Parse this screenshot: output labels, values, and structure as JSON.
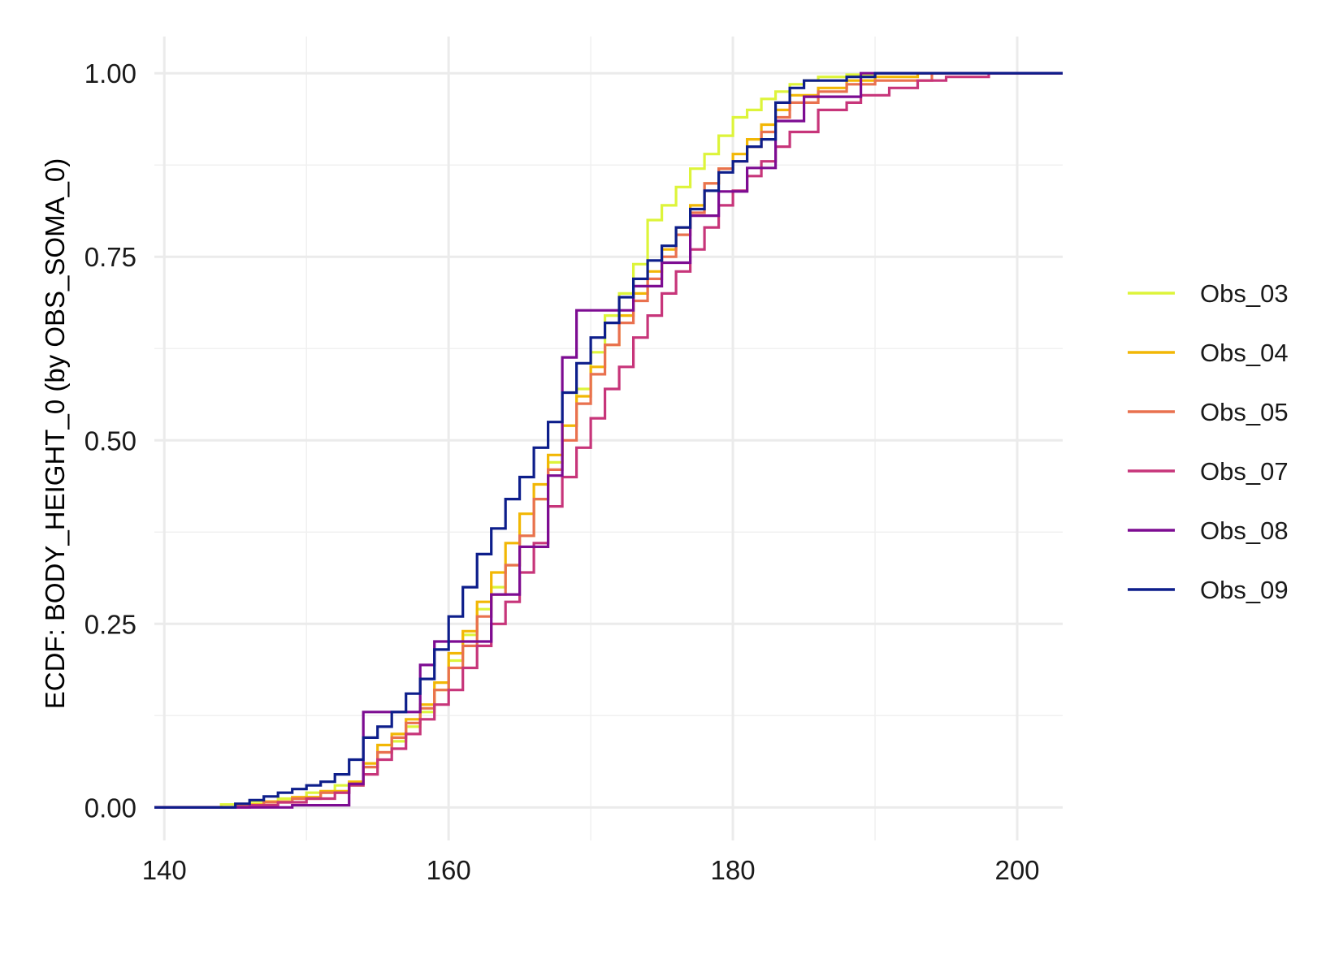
{
  "chart_data": {
    "type": "line",
    "subtype": "ecdf-step",
    "title": "",
    "xlabel": "",
    "ylabel": "ECDF: BODY_HEIGHT_0 (by OBS_SOMA_0)",
    "xlim": [
      139.3,
      203.2
    ],
    "ylim": [
      -0.045,
      1.05
    ],
    "x_ticks": [
      140,
      160,
      180,
      200
    ],
    "x_tick_labels": [
      "140",
      "160",
      "180",
      "200"
    ],
    "y_ticks": [
      0,
      0.25,
      0.5,
      0.75,
      1.0
    ],
    "y_tick_labels": [
      "0.00",
      "0.25",
      "0.50",
      "0.75",
      "1.00"
    ],
    "grid": true,
    "legend_position": "right",
    "series": [
      {
        "name": "Obs_03",
        "color": "#DDF43A",
        "x": [
          144,
          146,
          148,
          150,
          152,
          154,
          155,
          156,
          157,
          158,
          159,
          160,
          161,
          162,
          163,
          164,
          165,
          166,
          167,
          168,
          169,
          170,
          171,
          172,
          173,
          174,
          175,
          176,
          177,
          178,
          179,
          180,
          181,
          182,
          183,
          184,
          185,
          186,
          188,
          190,
          192
        ],
        "y": [
          0.004,
          0.008,
          0.012,
          0.02,
          0.03,
          0.055,
          0.075,
          0.09,
          0.11,
          0.13,
          0.16,
          0.2,
          0.235,
          0.27,
          0.3,
          0.33,
          0.37,
          0.42,
          0.47,
          0.52,
          0.57,
          0.62,
          0.67,
          0.7,
          0.74,
          0.8,
          0.82,
          0.845,
          0.87,
          0.89,
          0.915,
          0.94,
          0.95,
          0.965,
          0.975,
          0.985,
          0.99,
          0.995,
          0.998,
          1.0,
          1.0
        ]
      },
      {
        "name": "Obs_04",
        "color": "#F2B705",
        "x": [
          145,
          147,
          149,
          151,
          153,
          154,
          155,
          156,
          157,
          158,
          159,
          160,
          161,
          162,
          163,
          164,
          165,
          166,
          167,
          168,
          169,
          170,
          171,
          172,
          173,
          174,
          175,
          176,
          177,
          178,
          179,
          180,
          181,
          182,
          183,
          184,
          186,
          188,
          190,
          193
        ],
        "y": [
          0.004,
          0.008,
          0.014,
          0.022,
          0.035,
          0.06,
          0.085,
          0.1,
          0.12,
          0.14,
          0.17,
          0.21,
          0.24,
          0.28,
          0.32,
          0.36,
          0.4,
          0.44,
          0.48,
          0.52,
          0.56,
          0.6,
          0.63,
          0.67,
          0.7,
          0.73,
          0.76,
          0.79,
          0.82,
          0.85,
          0.87,
          0.89,
          0.91,
          0.93,
          0.95,
          0.97,
          0.98,
          0.99,
          0.995,
          1.0
        ]
      },
      {
        "name": "Obs_05",
        "color": "#E9714F",
        "x": [
          145,
          147,
          149,
          151,
          153,
          154,
          155,
          156,
          157,
          158,
          159,
          160,
          161,
          162,
          163,
          164,
          165,
          166,
          167,
          168,
          169,
          170,
          171,
          172,
          173,
          174,
          175,
          176,
          177,
          178,
          179,
          180,
          181,
          182,
          183,
          184,
          186,
          188,
          190,
          194
        ],
        "y": [
          0.003,
          0.007,
          0.012,
          0.02,
          0.032,
          0.055,
          0.075,
          0.095,
          0.115,
          0.135,
          0.16,
          0.19,
          0.22,
          0.26,
          0.29,
          0.33,
          0.37,
          0.42,
          0.46,
          0.5,
          0.55,
          0.59,
          0.63,
          0.66,
          0.69,
          0.72,
          0.75,
          0.78,
          0.81,
          0.85,
          0.87,
          0.88,
          0.9,
          0.92,
          0.94,
          0.96,
          0.975,
          0.985,
          0.99,
          1.0
        ]
      },
      {
        "name": "Obs_07",
        "color": "#C7357A",
        "x": [
          146,
          148,
          150,
          152,
          153,
          154,
          155,
          156,
          157,
          158,
          159,
          160,
          161,
          162,
          163,
          164,
          165,
          166,
          167,
          168,
          169,
          170,
          171,
          172,
          173,
          174,
          175,
          176,
          177,
          178,
          179,
          180,
          181,
          182,
          183,
          184,
          186,
          188,
          189,
          191,
          193,
          195,
          198
        ],
        "y": [
          0.003,
          0.007,
          0.012,
          0.02,
          0.03,
          0.045,
          0.065,
          0.08,
          0.1,
          0.12,
          0.14,
          0.16,
          0.19,
          0.22,
          0.25,
          0.28,
          0.32,
          0.36,
          0.41,
          0.45,
          0.49,
          0.53,
          0.57,
          0.6,
          0.64,
          0.67,
          0.7,
          0.73,
          0.76,
          0.79,
          0.82,
          0.84,
          0.86,
          0.88,
          0.9,
          0.92,
          0.95,
          0.96,
          0.97,
          0.98,
          0.99,
          0.995,
          1.0
        ]
      },
      {
        "name": "Obs_08",
        "color": "#7D0C92",
        "x": [
          149,
          153,
          154,
          156,
          157,
          158,
          159,
          161,
          163,
          165,
          167,
          168,
          169,
          171,
          173,
          175,
          177,
          179,
          181,
          183,
          185,
          189,
          192
        ],
        "y": [
          0.003,
          0.032,
          0.13,
          0.13,
          0.13,
          0.194,
          0.226,
          0.226,
          0.29,
          0.355,
          0.452,
          0.613,
          0.677,
          0.677,
          0.71,
          0.742,
          0.806,
          0.839,
          0.871,
          0.935,
          0.968,
          1.0,
          1.0
        ]
      },
      {
        "name": "Obs_09",
        "color": "#0D1E8B",
        "x": [
          145,
          146,
          147,
          148,
          149,
          150,
          151,
          152,
          153,
          154,
          155,
          156,
          157,
          158,
          159,
          160,
          161,
          162,
          163,
          164,
          165,
          166,
          167,
          168,
          169,
          170,
          171,
          172,
          173,
          174,
          175,
          176,
          177,
          178,
          179,
          180,
          181,
          182,
          183,
          184,
          185,
          186,
          188,
          190
        ],
        "y": [
          0.005,
          0.01,
          0.015,
          0.02,
          0.025,
          0.03,
          0.035,
          0.045,
          0.065,
          0.095,
          0.11,
          0.13,
          0.155,
          0.175,
          0.215,
          0.26,
          0.3,
          0.345,
          0.38,
          0.42,
          0.45,
          0.49,
          0.525,
          0.565,
          0.605,
          0.64,
          0.66,
          0.695,
          0.72,
          0.745,
          0.765,
          0.79,
          0.815,
          0.84,
          0.865,
          0.88,
          0.9,
          0.91,
          0.96,
          0.98,
          0.99,
          0.99,
          0.995,
          1.0
        ]
      }
    ]
  }
}
